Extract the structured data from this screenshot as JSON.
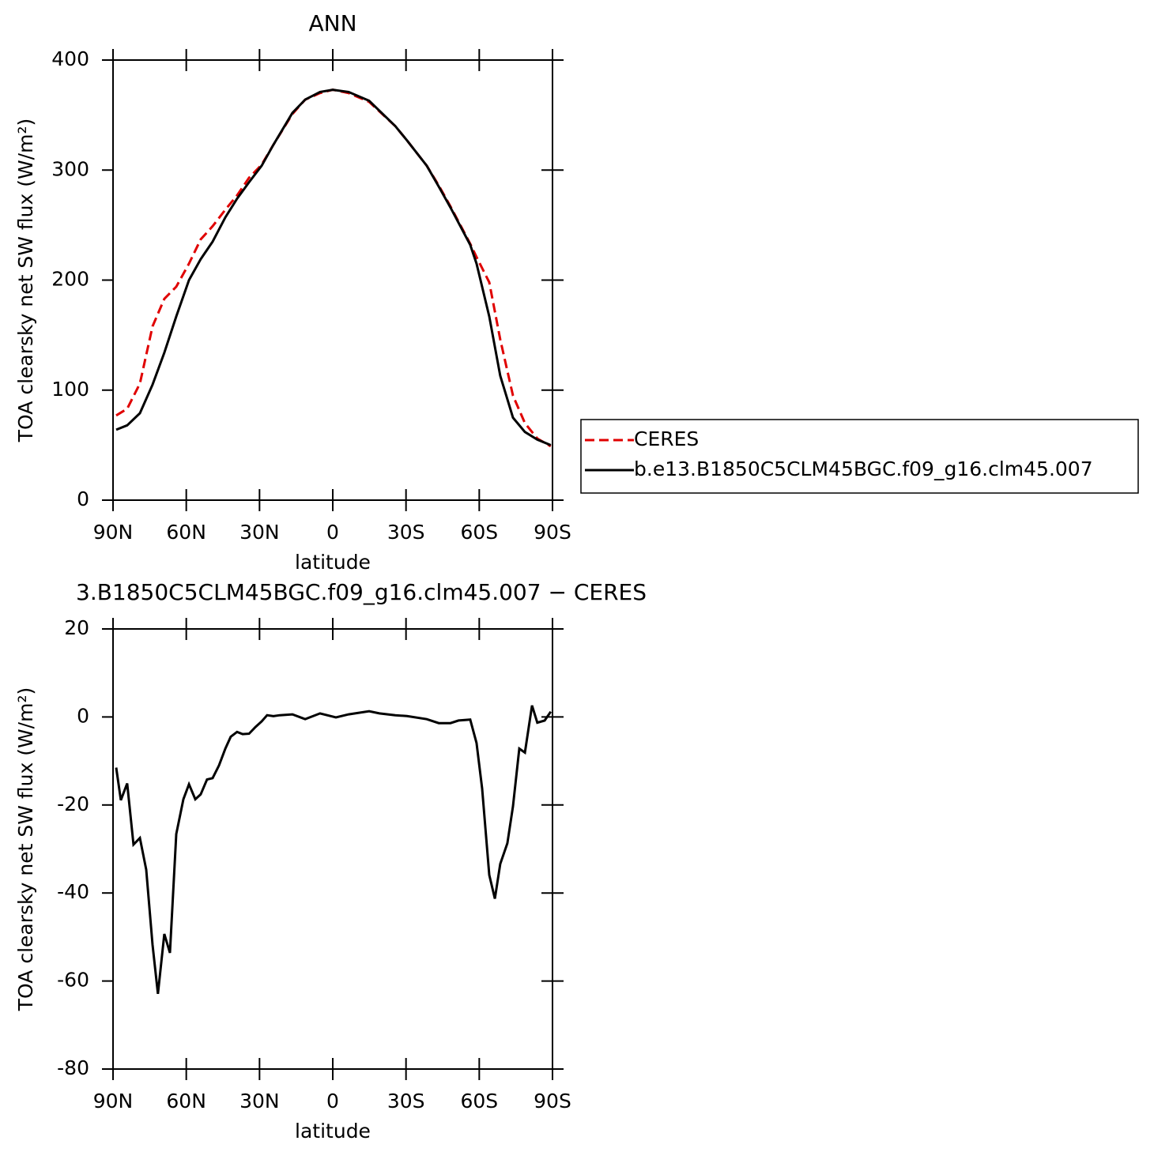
{
  "chart_data": [
    {
      "type": "line",
      "title": "ANN",
      "xlabel": "latitude",
      "ylabel": "TOA clearsky net SW flux (W/m²)",
      "x": [
        88.7,
        84.2,
        79,
        73.8,
        69,
        64.1,
        58.9,
        54.1,
        49.2,
        44,
        39.2,
        34.3,
        29.1,
        24.3,
        16.5,
        11.3,
        5.2,
        0,
        -6.5,
        -14.9,
        -25.6,
        -30.4,
        -38.5,
        -43.4,
        -48.2,
        -56.3,
        -58.9,
        -64.1,
        -68.6,
        -73.8,
        -78.7,
        -83.8,
        -89.3
      ],
      "series": [
        {
          "name": "CERES",
          "color": "#e00000",
          "line_style": "dashed",
          "values": [
            77,
            83,
            106,
            158,
            183,
            194,
            215,
            237,
            249,
            264,
            277,
            293,
            305,
            323,
            351,
            364,
            370,
            373,
            370,
            362,
            340,
            327,
            304,
            286,
            267,
            233,
            221,
            198,
            146,
            95,
            70,
            56,
            49
          ]
        },
        {
          "name": "b.e13.B1850C5CLM45BGC.f09_g16.clm45.007",
          "color": "#000000",
          "line_style": "solid",
          "values": [
            64,
            68,
            79,
            105,
            134,
            167,
            200,
            219,
            235,
            257,
            274,
            289,
            304,
            323,
            352,
            364,
            371,
            373,
            371,
            363,
            340,
            327,
            304,
            285,
            266,
            232,
            215,
            167,
            113,
            75,
            62,
            55,
            50
          ]
        }
      ],
      "xlim": [
        90,
        -90
      ],
      "xticks": [
        {
          "value": 90,
          "label": "90N"
        },
        {
          "value": 60,
          "label": "60N"
        },
        {
          "value": 30,
          "label": "30N"
        },
        0,
        {
          "value": -30,
          "label": "30S"
        },
        {
          "value": -60,
          "label": "60S"
        },
        {
          "value": -90,
          "label": "90S"
        }
      ],
      "ylim": [
        0,
        400
      ],
      "yticks": [
        0,
        100,
        200,
        300,
        400
      ],
      "legend": "right"
    },
    {
      "type": "line",
      "title": "3.B1850C5CLM45BGC.f09_g16.clm45.007 − CERES",
      "xlabel": "latitude",
      "ylabel": "TOA clearsky net SW flux (W/m²)",
      "x": [
        88.7,
        86.8,
        84.2,
        81.6,
        79,
        76.4,
        73.8,
        71.6,
        69,
        66.7,
        64.1,
        61.2,
        58.9,
        56.3,
        54.1,
        51.5,
        49.2,
        46.6,
        44,
        41.8,
        39.2,
        36.9,
        34.3,
        31.7,
        29.1,
        26.9,
        24.3,
        21.7,
        16.5,
        11.3,
        5.2,
        -1.3,
        -6.5,
        -14.9,
        -19.1,
        -25.6,
        -30.4,
        -38.5,
        -43.4,
        -48.2,
        -51.5,
        -56.3,
        -58.9,
        -61.2,
        -64.1,
        -66.4,
        -68.6,
        -71.5,
        -73.8,
        -76.4,
        -78.7,
        -81.6,
        -83.8,
        -86.8,
        -89.3
      ],
      "values": [
        -11.5,
        -18.9,
        -15.1,
        -29,
        -27.5,
        -34.7,
        -51.8,
        -62.9,
        -49.3,
        -53.6,
        -26.6,
        -18.7,
        -15.3,
        -18.7,
        -17.6,
        -14.2,
        -13.9,
        -11,
        -7.2,
        -4.5,
        -3.4,
        -3.9,
        -3.8,
        -2.3,
        -1,
        0.4,
        0.2,
        0.4,
        0.6,
        -0.5,
        0.8,
        -0.1,
        0.6,
        1.3,
        0.8,
        0.4,
        0.2,
        -0.5,
        -1.4,
        -1.4,
        -0.8,
        -0.6,
        -5.9,
        -16.3,
        -35.9,
        -41.3,
        -33.4,
        -28.7,
        -20.3,
        -7.2,
        -8.1,
        2.6,
        -1.3,
        -0.8,
        1.2
      ],
      "color": "#000000",
      "line_style": "solid",
      "xlim": [
        90,
        -90
      ],
      "xticks": [
        {
          "value": 90,
          "label": "90N"
        },
        {
          "value": 60,
          "label": "60N"
        },
        {
          "value": 30,
          "label": "30N"
        },
        0,
        {
          "value": -30,
          "label": "30S"
        },
        {
          "value": -60,
          "label": "60S"
        },
        {
          "value": -90,
          "label": "90S"
        }
      ],
      "ylim": [
        -80,
        20
      ],
      "yticks": [
        -80,
        -60,
        -40,
        -20,
        0,
        20
      ]
    }
  ]
}
